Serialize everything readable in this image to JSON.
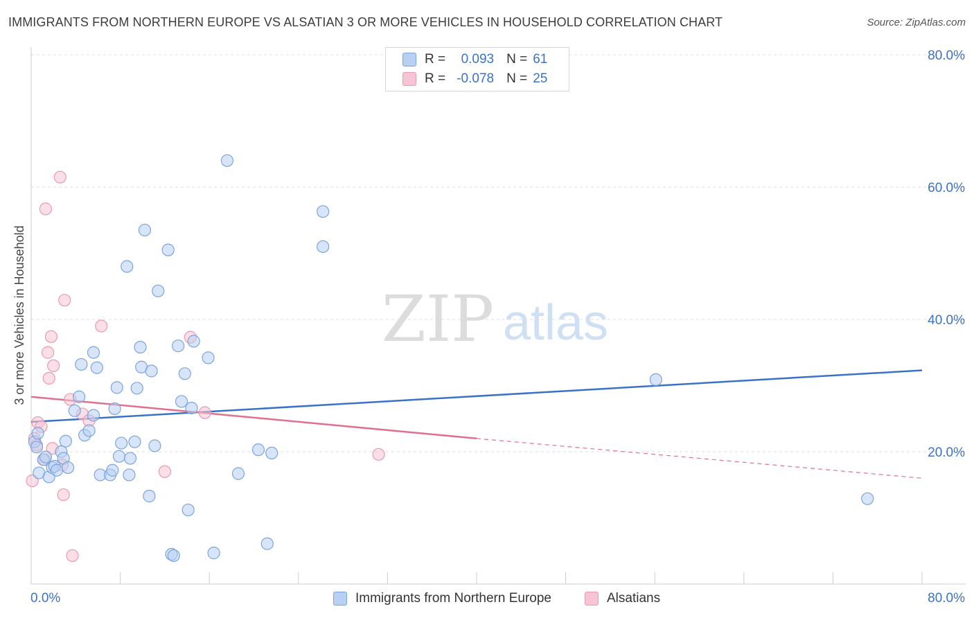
{
  "title": "IMMIGRANTS FROM NORTHERN EUROPE VS ALSATIAN 3 OR MORE VEHICLES IN HOUSEHOLD CORRELATION CHART",
  "source": "Source: ZipAtlas.com",
  "watermark": {
    "zip": "ZIP",
    "atlas": "atlas"
  },
  "legend": {
    "r_label": "R =",
    "n_label": "N =",
    "rows": [
      {
        "series": "blue",
        "r": "0.093",
        "n": "61"
      },
      {
        "series": "pink",
        "r": "-0.078",
        "n": "25"
      }
    ]
  },
  "bottom_legend": [
    "Immigrants from Northern Europe",
    "Alsatians"
  ],
  "colors": {
    "blue_fill": "#b8d0f2",
    "blue_stroke": "#7aa4de",
    "blue_line": "#3a72c8",
    "pink_fill": "#f7c4d4",
    "pink_stroke": "#e69ab3",
    "pink_line": "#e0708f",
    "tick_text": "#3a72c8",
    "grid": "#dddddd"
  },
  "chart_data": {
    "type": "scatter",
    "title": "IMMIGRANTS FROM NORTHERN EUROPE VS ALSATIAN 3 OR MORE VEHICLES IN HOUSEHOLD CORRELATION CHART",
    "xlabel": "",
    "ylabel": "3 or more Vehicles in Household",
    "xlim": [
      0,
      80
    ],
    "ylim": [
      0,
      80
    ],
    "x_tick_labels": [
      "0.0%",
      "80.0%"
    ],
    "y_ticks": [
      20,
      40,
      60,
      80
    ],
    "y_tick_labels": [
      "20.0%",
      "40.0%",
      "60.0%",
      "80.0%"
    ],
    "grid": true,
    "series": [
      {
        "name": "Immigrants from Northern Europe",
        "color": "blue",
        "R": 0.093,
        "N": 61,
        "trend": {
          "x": [
            0,
            80
          ],
          "y": [
            24.5,
            32.3
          ]
        },
        "points": [
          [
            0.3,
            21.5
          ],
          [
            0.6,
            22.8
          ],
          [
            0.5,
            20.7
          ],
          [
            0.7,
            16.8
          ],
          [
            1.1,
            18.8
          ],
          [
            1.3,
            19.2
          ],
          [
            1.6,
            16.2
          ],
          [
            1.9,
            17.6
          ],
          [
            2.1,
            17.8
          ],
          [
            2.3,
            17.2
          ],
          [
            2.7,
            20.0
          ],
          [
            2.9,
            19.0
          ],
          [
            3.1,
            21.6
          ],
          [
            3.3,
            17.6
          ],
          [
            3.9,
            26.2
          ],
          [
            4.3,
            28.3
          ],
          [
            4.5,
            33.2
          ],
          [
            4.8,
            22.5
          ],
          [
            5.2,
            23.2
          ],
          [
            5.6,
            35.0
          ],
          [
            5.9,
            32.7
          ],
          [
            5.6,
            25.5
          ],
          [
            6.2,
            16.5
          ],
          [
            7.1,
            16.5
          ],
          [
            7.3,
            17.2
          ],
          [
            7.5,
            26.5
          ],
          [
            7.7,
            29.7
          ],
          [
            7.9,
            19.3
          ],
          [
            8.1,
            21.3
          ],
          [
            8.6,
            48.0
          ],
          [
            8.8,
            16.5
          ],
          [
            8.9,
            19.0
          ],
          [
            9.3,
            21.5
          ],
          [
            9.5,
            29.6
          ],
          [
            9.8,
            35.8
          ],
          [
            9.9,
            32.8
          ],
          [
            10.2,
            53.5
          ],
          [
            10.6,
            13.3
          ],
          [
            10.8,
            32.2
          ],
          [
            11.1,
            20.9
          ],
          [
            11.4,
            44.3
          ],
          [
            12.3,
            50.5
          ],
          [
            12.6,
            4.5
          ],
          [
            12.8,
            4.3
          ],
          [
            13.2,
            36.0
          ],
          [
            13.5,
            27.6
          ],
          [
            13.8,
            31.8
          ],
          [
            14.1,
            11.2
          ],
          [
            14.4,
            26.6
          ],
          [
            14.6,
            36.7
          ],
          [
            15.9,
            34.2
          ],
          [
            16.4,
            4.7
          ],
          [
            17.6,
            64.0
          ],
          [
            18.6,
            16.7
          ],
          [
            20.4,
            20.3
          ],
          [
            21.2,
            6.1
          ],
          [
            21.6,
            19.8
          ],
          [
            26.2,
            56.3
          ],
          [
            26.2,
            51.0
          ],
          [
            56.1,
            30.9
          ],
          [
            75.1,
            12.9
          ]
        ]
      },
      {
        "name": "Alsatians",
        "color": "pink",
        "R": -0.078,
        "N": 25,
        "trend": {
          "x": [
            0,
            40
          ],
          "y": [
            28.3,
            22.0
          ],
          "dashed_extension_to": [
            80,
            16.0
          ]
        },
        "points": [
          [
            0.1,
            15.6
          ],
          [
            0.3,
            22.0
          ],
          [
            0.5,
            21.0
          ],
          [
            0.6,
            24.4
          ],
          [
            0.9,
            23.8
          ],
          [
            1.2,
            18.8
          ],
          [
            1.3,
            56.7
          ],
          [
            1.5,
            35.0
          ],
          [
            1.6,
            31.1
          ],
          [
            1.8,
            37.4
          ],
          [
            1.9,
            20.5
          ],
          [
            2.0,
            33.0
          ],
          [
            2.6,
            61.5
          ],
          [
            2.8,
            18.0
          ],
          [
            2.9,
            13.5
          ],
          [
            3.0,
            42.9
          ],
          [
            3.7,
            4.3
          ],
          [
            3.5,
            27.9
          ],
          [
            4.6,
            25.7
          ],
          [
            5.2,
            24.7
          ],
          [
            6.3,
            39.0
          ],
          [
            12.0,
            17.0
          ],
          [
            14.3,
            37.3
          ],
          [
            15.6,
            25.9
          ],
          [
            31.2,
            19.6
          ]
        ]
      }
    ]
  }
}
